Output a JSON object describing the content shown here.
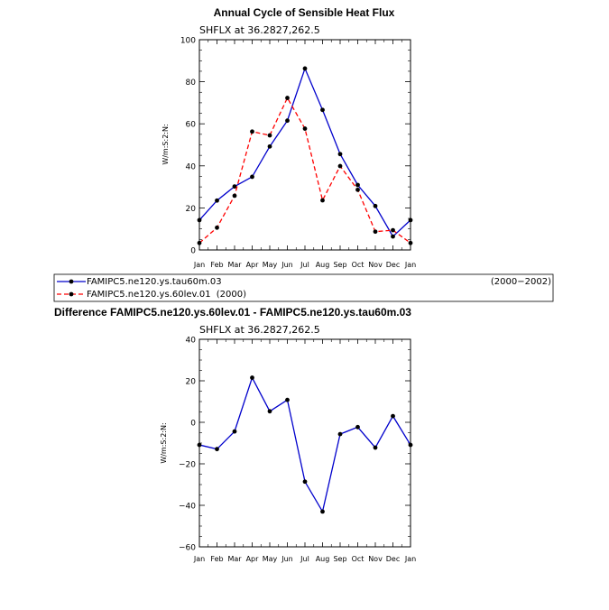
{
  "chart_data": [
    {
      "type": "line",
      "title": "Annual Cycle of Sensible Heat Flux",
      "subtitle": "SHFLX at 36.2827,262.5",
      "ylabel": "W/m:S:2:N:",
      "xlabel": "",
      "categories": [
        "Jan",
        "Feb",
        "Mar",
        "Apr",
        "May",
        "Jun",
        "Jul",
        "Aug",
        "Sep",
        "Oct",
        "Nov",
        "Dec",
        "Jan"
      ],
      "ylim": [
        0,
        100
      ],
      "yticks": [
        0,
        20,
        40,
        60,
        80,
        100
      ],
      "series": [
        {
          "name": "FAMIPC5.ne120.ys.tau60m.03",
          "period": "(2000−2002)",
          "color": "#0000cc",
          "dash": "solid",
          "values": [
            14.2,
            23.5,
            30.2,
            34.8,
            49.2,
            61.5,
            86.3,
            66.6,
            45.6,
            30.9,
            20.9,
            6.4,
            14.2
          ]
        },
        {
          "name": "FAMIPC5.ne120.ys.60lev.01",
          "period": "(2000)",
          "color": "#ff0000",
          "dash": "dashed",
          "values": [
            3.3,
            10.6,
            25.8,
            56.3,
            54.5,
            72.3,
            57.7,
            23.6,
            39.9,
            28.6,
            8.7,
            9.4,
            3.3
          ]
        }
      ]
    },
    {
      "type": "line",
      "title": "Difference FAMIPC5.ne120.ys.60lev.01 - FAMIPC5.ne120.ys.tau60m.03",
      "subtitle": "SHFLX at 36.2827,262.5",
      "ylabel": "W/m:S:2:N:",
      "xlabel": "",
      "categories": [
        "Jan",
        "Feb",
        "Mar",
        "Apr",
        "May",
        "Jun",
        "Jul",
        "Aug",
        "Sep",
        "Oct",
        "Nov",
        "Dec",
        "Jan"
      ],
      "ylim": [
        -60,
        40
      ],
      "yticks": [
        -60,
        -40,
        -20,
        0,
        20,
        40
      ],
      "ytick_labels": [
        "−60",
        "−40",
        "−20",
        "0",
        "20",
        "40"
      ],
      "series": [
        {
          "name": "difference",
          "color": "#0000cc",
          "dash": "solid",
          "values": [
            -10.9,
            -12.9,
            -4.4,
            21.5,
            5.3,
            10.8,
            -28.6,
            -43.0,
            -5.7,
            -2.3,
            -12.2,
            3.0,
            -10.9
          ]
        }
      ]
    }
  ]
}
